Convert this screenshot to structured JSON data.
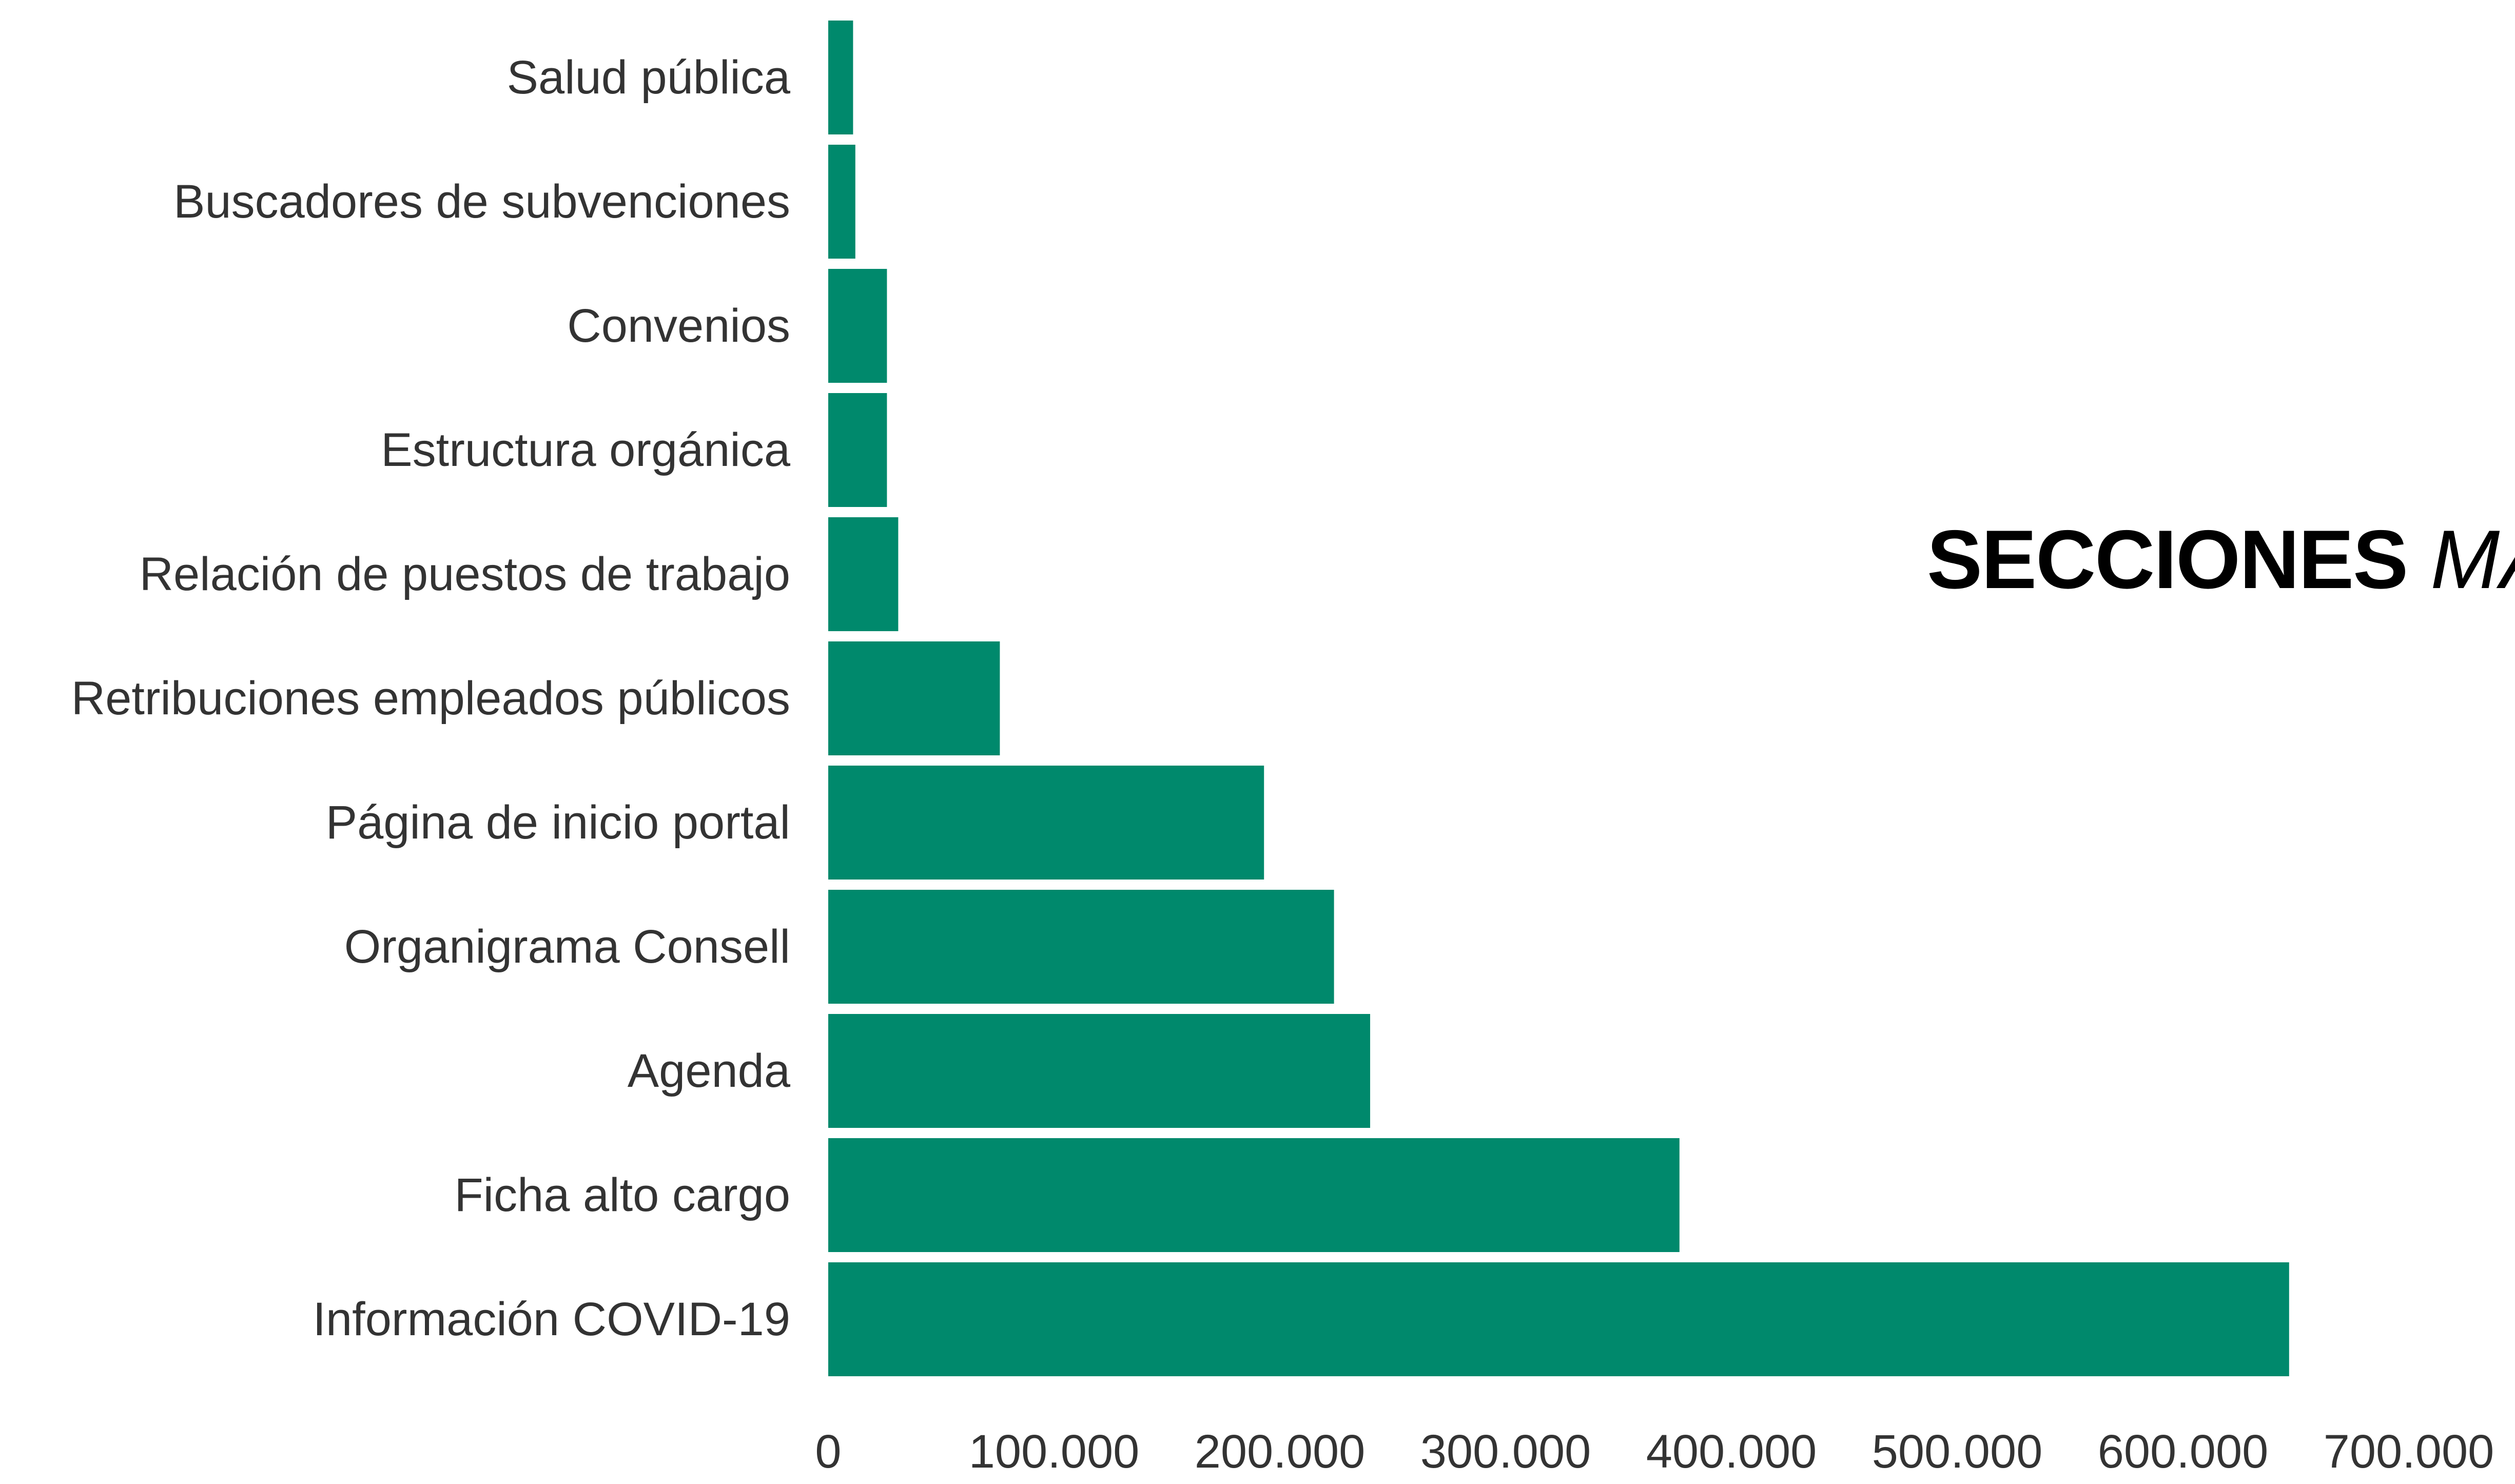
{
  "headline": {
    "bold": "SECCIONES",
    "italic": "MÁ"
  },
  "colors": {
    "bar": "#00896c",
    "label": "#333333",
    "headline": "#000000"
  },
  "chart_data": {
    "type": "bar",
    "orientation": "horizontal",
    "categories": [
      "Salud pública",
      "Buscadores de subvenciones",
      "Convenios",
      "Estructura orgánica",
      "Relación de puestos de trabajo",
      "Retribuciones empleados públicos",
      "Página de inicio portal",
      "Organigrama Consell",
      "Agenda",
      "Ficha alto cargo",
      "Información COVID-19"
    ],
    "values": [
      11000,
      12000,
      26000,
      26000,
      31000,
      76000,
      193000,
      224000,
      240000,
      377000,
      647000
    ],
    "xlim": [
      0,
      700000
    ],
    "xticks": [
      0,
      100000,
      200000,
      300000,
      400000,
      500000,
      600000,
      700000
    ],
    "xtick_labels": [
      "0",
      "100.000",
      "200.000",
      "300.000",
      "400.000",
      "500.000",
      "600.000",
      "700.000"
    ],
    "grid": false,
    "legend": "none"
  }
}
